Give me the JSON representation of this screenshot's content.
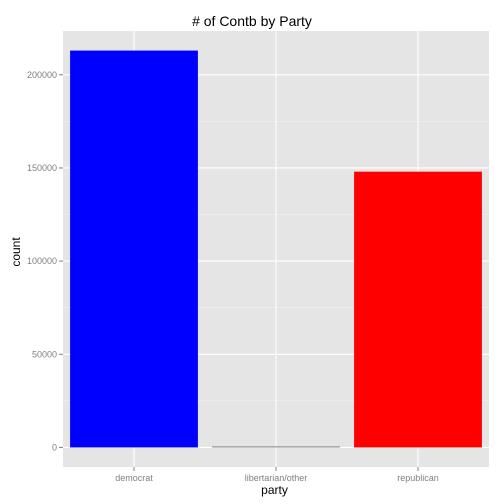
{
  "chart_data": {
    "type": "bar",
    "title": "# of Contb by Party",
    "xlabel": "party",
    "ylabel": "count",
    "categories": [
      "democrat",
      "libertarian/other",
      "republican"
    ],
    "values": [
      213000,
      400,
      148000
    ],
    "colors": [
      "#0000ff",
      "#7f7f7f",
      "#ff0000"
    ],
    "ylim": [
      -10500,
      223500
    ],
    "yticks": [
      0,
      50000,
      100000,
      150000,
      200000
    ],
    "ytick_labels": [
      "0",
      "50000",
      "100000",
      "150000",
      "200000"
    ],
    "grid": true,
    "panel_background": "#e5e5e5",
    "grid_color": "#ffffff"
  }
}
